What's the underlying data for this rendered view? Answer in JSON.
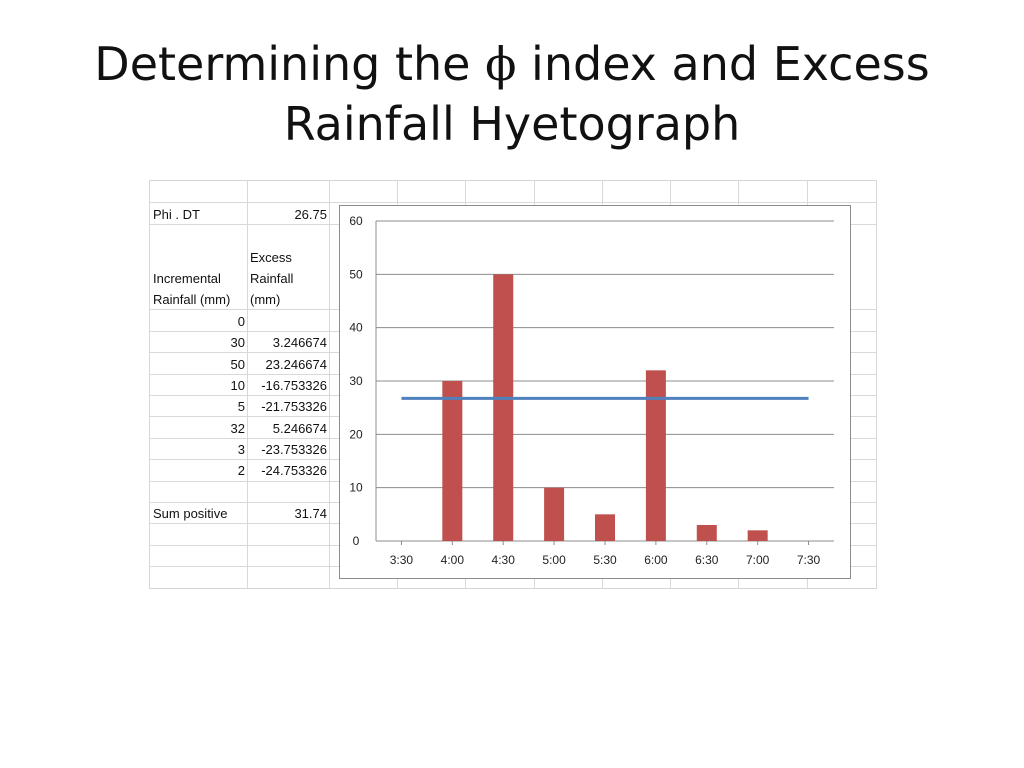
{
  "slide": {
    "title_line1_pre": "Determining the ",
    "title_phi": "ϕ",
    "title_line1_post": " index and Excess",
    "title_line2": "Rainfall Hyetograph"
  },
  "table": {
    "phi_label": "Phi . DT",
    "phi_value": "26.75",
    "header_incremental_1": "Incremental",
    "header_incremental_2": "Rainfall (mm)",
    "header_excess_1": "Excess",
    "header_excess_2": "Rainfall",
    "header_excess_3": "(mm)",
    "rows": [
      {
        "incremental": "0",
        "excess": ""
      },
      {
        "incremental": "30",
        "excess": "3.246674"
      },
      {
        "incremental": "50",
        "excess": "23.246674"
      },
      {
        "incremental": "10",
        "excess": "-16.753326"
      },
      {
        "incremental": "5",
        "excess": "-21.753326"
      },
      {
        "incremental": "32",
        "excess": "5.246674"
      },
      {
        "incremental": "3",
        "excess": "-23.753326"
      },
      {
        "incremental": "2",
        "excess": "-24.753326"
      }
    ],
    "sum_label": "Sum positive",
    "sum_value": "31.74"
  },
  "chart_data": {
    "type": "bar",
    "categories": [
      "3:30",
      "4:00",
      "4:30",
      "5:00",
      "5:30",
      "6:00",
      "6:30",
      "7:00",
      "7:30"
    ],
    "values": [
      0,
      30,
      50,
      10,
      5,
      32,
      3,
      2,
      0
    ],
    "line": {
      "y": 26.75,
      "from": "3:30",
      "to": "7:30"
    },
    "ylim": [
      0,
      60
    ],
    "yticks": [
      0,
      10,
      20,
      30,
      40,
      50,
      60
    ],
    "grid": true,
    "legend": "none",
    "colors": {
      "bar": "#c0504d",
      "line": "#4f81bd",
      "gridline": "#8c8c8c",
      "axis": "#8c8c8c"
    }
  }
}
